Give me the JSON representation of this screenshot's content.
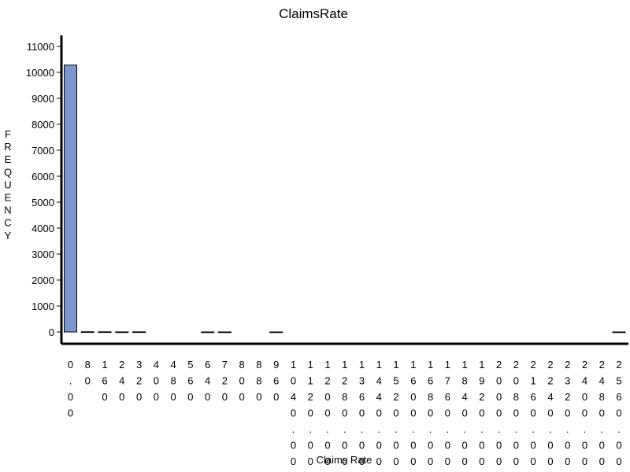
{
  "chart_data": {
    "type": "bar",
    "title": "ClaimsRate",
    "xlabel": "Claims Rate",
    "ylabel": "FREQUENCY",
    "ylim": [
      0,
      11000
    ],
    "yticks": [
      0,
      1000,
      2000,
      3000,
      4000,
      5000,
      6000,
      7000,
      8000,
      9000,
      10000,
      11000
    ],
    "grid": false,
    "bar_color": "#7b97cf",
    "bar_stroke": "#000000",
    "categories": [
      "0.00",
      "80",
      "160",
      "240",
      "320",
      "400",
      "480",
      "560",
      "640",
      "720",
      "800",
      "880",
      "960",
      "1040",
      "1120",
      "1200",
      "1280",
      "1360",
      "1440",
      "1520",
      "1600",
      "1680",
      "1760",
      "1840",
      "1920",
      "2000",
      "2080",
      "2160",
      "2240",
      "2320",
      "2400",
      "2480",
      "2560"
    ],
    "category_labels": [
      "0.00",
      "80",
      "160",
      "240",
      "320",
      "400",
      "480",
      "560",
      "640",
      "720",
      "800",
      "880",
      "960",
      "1040.00",
      "1120.00",
      "1200.00",
      "1280.00",
      "1360.00",
      "1440.00",
      "1520.00",
      "1600.00",
      "1680.00",
      "1760.00",
      "1840.00",
      "1920.00",
      "2000.00",
      "2080.00",
      "2160.00",
      "2240.00",
      "2320.00",
      "2400.00",
      "2480.00",
      "2560.00"
    ],
    "values": [
      10280,
      8,
      6,
      3,
      5,
      0,
      0,
      0,
      1,
      1,
      0,
      0,
      1,
      0,
      0,
      0,
      0,
      0,
      0,
      0,
      0,
      0,
      0,
      0,
      0,
      0,
      0,
      0,
      0,
      0,
      0,
      0,
      1
    ]
  }
}
